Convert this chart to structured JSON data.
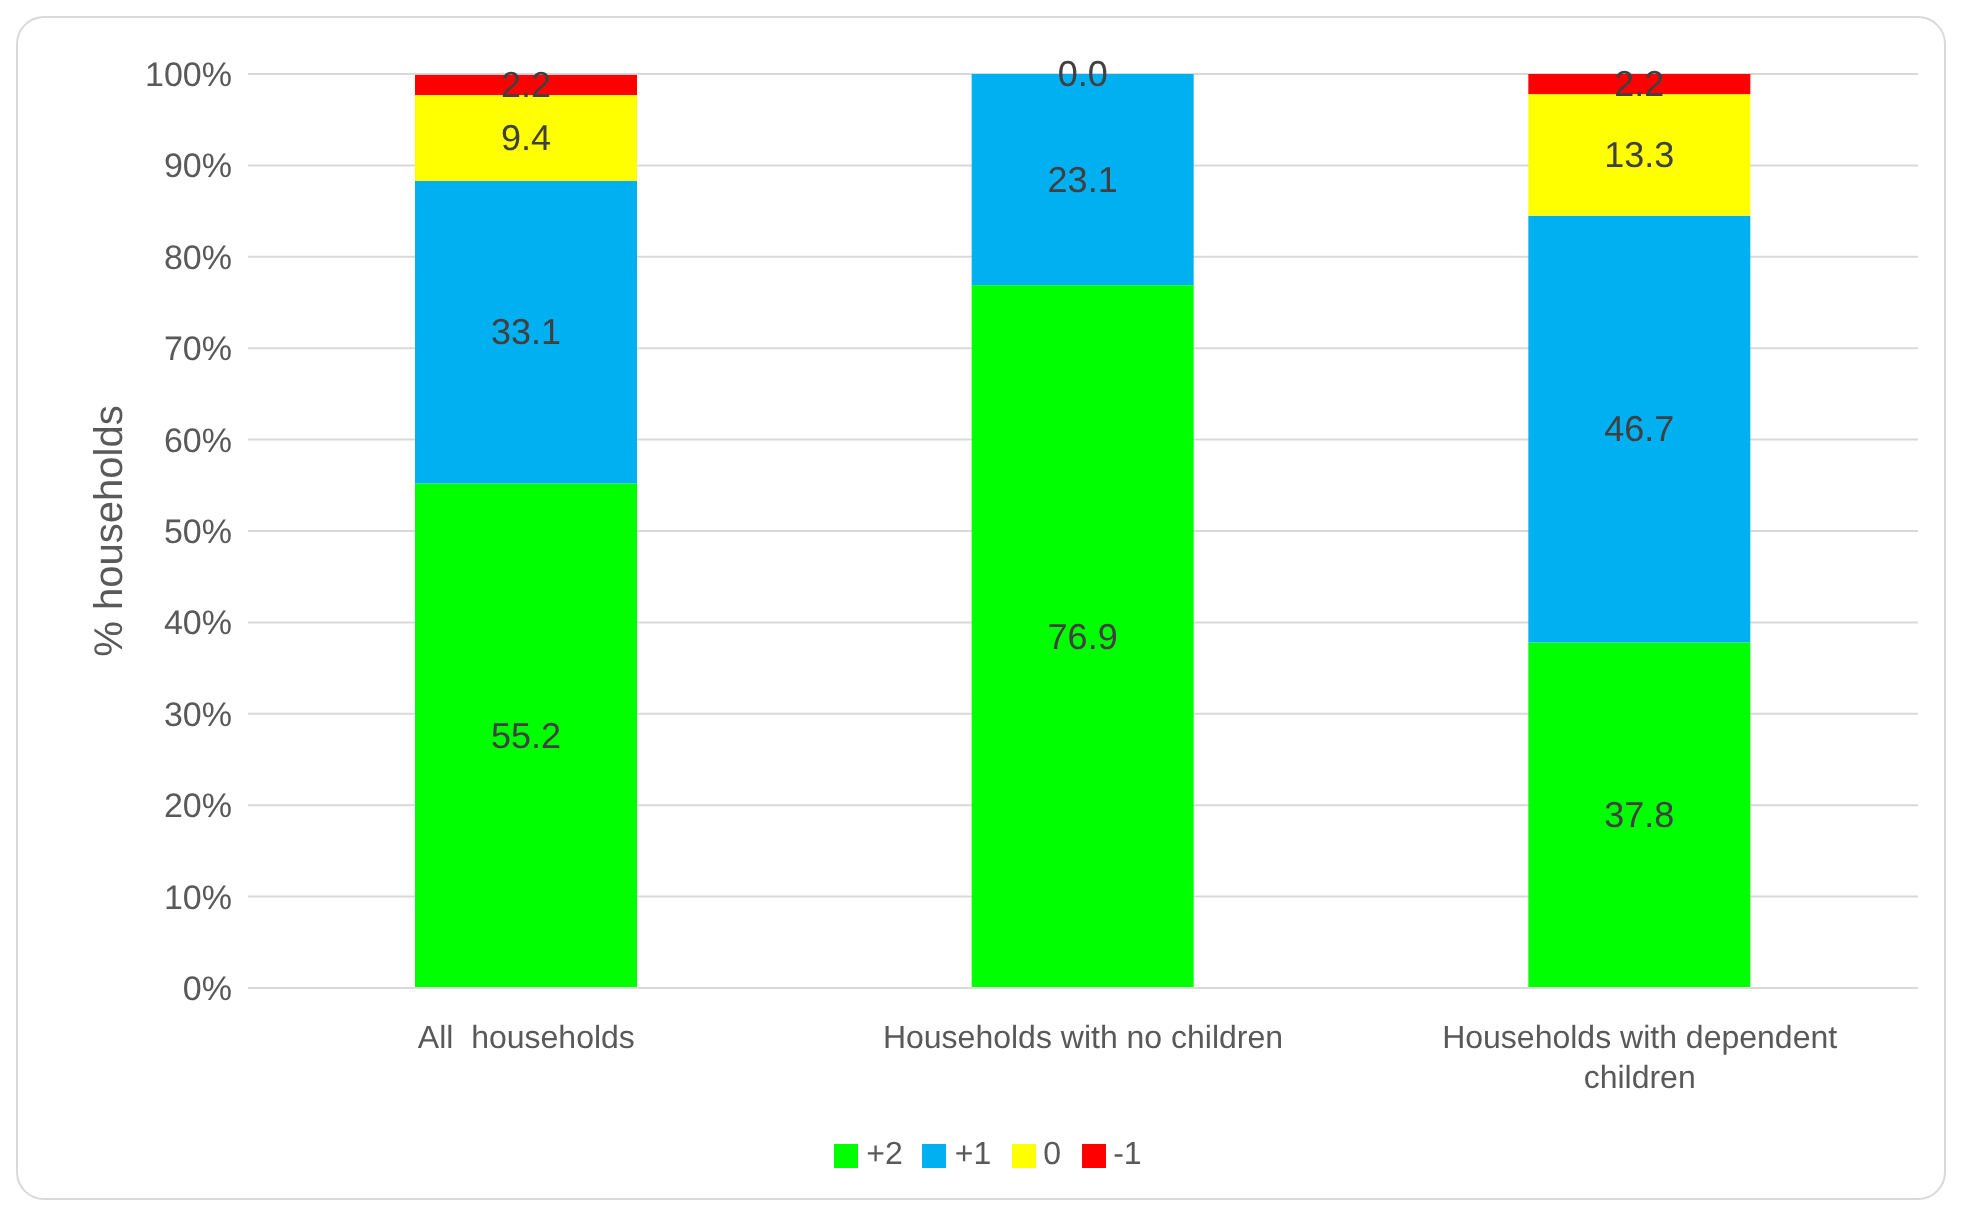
{
  "chart_data": {
    "type": "bar",
    "stacked": true,
    "ylabel": "% households",
    "categories": [
      "All  households",
      "Households with no children",
      "Households with dependent children"
    ],
    "series": [
      {
        "name": "+2",
        "color": "#00ff00",
        "values": [
          55.2,
          76.9,
          37.8
        ],
        "value_labels": [
          "55.2",
          "76.9",
          "37.8"
        ]
      },
      {
        "name": "+1",
        "color": "#00b0f0",
        "values": [
          33.1,
          23.1,
          46.7
        ],
        "value_labels": [
          "33.1",
          "23.1",
          "46.7"
        ]
      },
      {
        "name": "0",
        "color": "#ffff00",
        "values": [
          9.4,
          0.0,
          13.3
        ],
        "value_labels": [
          "9.4",
          "0.0",
          "13.3"
        ]
      },
      {
        "name": "-1",
        "color": "#ff0000",
        "values": [
          2.2,
          null,
          2.2
        ],
        "value_labels": [
          "2.2",
          null,
          "2.2"
        ]
      }
    ],
    "ylim": [
      0,
      100
    ],
    "yticks": [
      {
        "value": 0,
        "label": "0%"
      },
      {
        "value": 10,
        "label": "10%"
      },
      {
        "value": 20,
        "label": "20%"
      },
      {
        "value": 30,
        "label": "30%"
      },
      {
        "value": 40,
        "label": "40%"
      },
      {
        "value": 50,
        "label": "50%"
      },
      {
        "value": 60,
        "label": "60%"
      },
      {
        "value": 70,
        "label": "70%"
      },
      {
        "value": 80,
        "label": "80%"
      },
      {
        "value": 90,
        "label": "90%"
      },
      {
        "value": 100,
        "label": "100%"
      }
    ],
    "grid": "y",
    "legend": "bottom"
  }
}
